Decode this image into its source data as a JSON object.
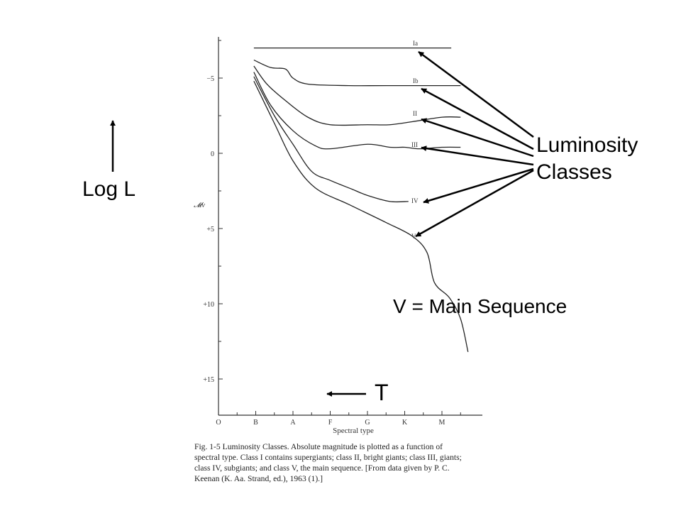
{
  "slide": {
    "ylabel_annotation": "Log L",
    "classes_annotation_line1": "Luminosity",
    "classes_annotation_line2": "Classes",
    "main_sequence_note": "V = Main Sequence",
    "temperature_annotation": "T",
    "arrow_color": "#000000"
  },
  "chart_data": {
    "type": "line",
    "xlabel": "Spectral type",
    "ylabel": "𝓜v",
    "x_ticks": [
      "O",
      "B",
      "A",
      "F",
      "G",
      "K",
      "M"
    ],
    "y_ticks": [
      "−5",
      "0",
      "+5",
      "+10",
      "+15"
    ],
    "y_tick_values": [
      -5,
      0,
      5,
      10,
      15
    ],
    "ylim": [
      -7,
      17
    ],
    "y_inverted": true,
    "x_index_range": [
      0,
      6.7
    ],
    "grid": false,
    "series": [
      {
        "name": "Ia",
        "points": [
          [
            0.95,
            -7.0
          ],
          [
            6.25,
            -7.0
          ]
        ]
      },
      {
        "name": "Ib",
        "points": [
          [
            0.95,
            -6.2
          ],
          [
            1.4,
            -5.7
          ],
          [
            1.8,
            -5.6
          ],
          [
            2.0,
            -5.0
          ],
          [
            2.4,
            -4.6
          ],
          [
            3.5,
            -4.5
          ],
          [
            4.5,
            -4.5
          ],
          [
            6.5,
            -4.5
          ]
        ]
      },
      {
        "name": "II",
        "points": [
          [
            0.95,
            -5.8
          ],
          [
            1.3,
            -4.6
          ],
          [
            1.8,
            -3.5
          ],
          [
            2.4,
            -2.4
          ],
          [
            3.0,
            -1.9
          ],
          [
            4.0,
            -1.9
          ],
          [
            4.6,
            -1.9
          ],
          [
            5.2,
            -2.1
          ],
          [
            6.0,
            -2.4
          ],
          [
            6.5,
            -2.4
          ]
        ]
      },
      {
        "name": "III",
        "points": [
          [
            0.95,
            -5.4
          ],
          [
            1.4,
            -3.2
          ],
          [
            2.0,
            -1.5
          ],
          [
            2.6,
            -0.5
          ],
          [
            3.0,
            -0.3
          ],
          [
            4.0,
            -0.6
          ],
          [
            4.6,
            -0.4
          ],
          [
            5.0,
            -0.4
          ],
          [
            5.4,
            -0.3
          ],
          [
            6.0,
            -0.4
          ],
          [
            6.5,
            -0.4
          ]
        ]
      },
      {
        "name": "IV",
        "points": [
          [
            0.95,
            -5.1
          ],
          [
            1.5,
            -2.5
          ],
          [
            2.0,
            -0.6
          ],
          [
            2.5,
            1.2
          ],
          [
            3.0,
            1.8
          ],
          [
            3.6,
            2.4
          ],
          [
            4.0,
            2.8
          ],
          [
            4.6,
            3.2
          ],
          [
            5.1,
            3.2
          ]
        ]
      },
      {
        "name": "V",
        "points": [
          [
            0.95,
            -4.8
          ],
          [
            1.5,
            -2.0
          ],
          [
            2.0,
            0.5
          ],
          [
            2.6,
            2.3
          ],
          [
            3.5,
            3.4
          ],
          [
            4.5,
            4.6
          ],
          [
            5.2,
            5.5
          ],
          [
            5.6,
            6.6
          ],
          [
            5.8,
            8.6
          ],
          [
            6.2,
            9.6
          ],
          [
            6.5,
            11.0
          ],
          [
            6.7,
            13.2
          ]
        ]
      }
    ],
    "series_labels": [
      "Ia",
      "Ib",
      "II",
      "III",
      "IV",
      "V"
    ],
    "caption_lines": [
      "Fig. 1-5  Luminosity Classes. Absolute magnitude is plotted as a function of",
      "spectral type. Class I contains supergiants; class II, bright giants; class III, giants;",
      "class IV, subgiants; and class V, the main sequence. [From data given by P. C.",
      "Keenan (K. Aa. Strand, ed.), 1963 (1).]"
    ]
  }
}
